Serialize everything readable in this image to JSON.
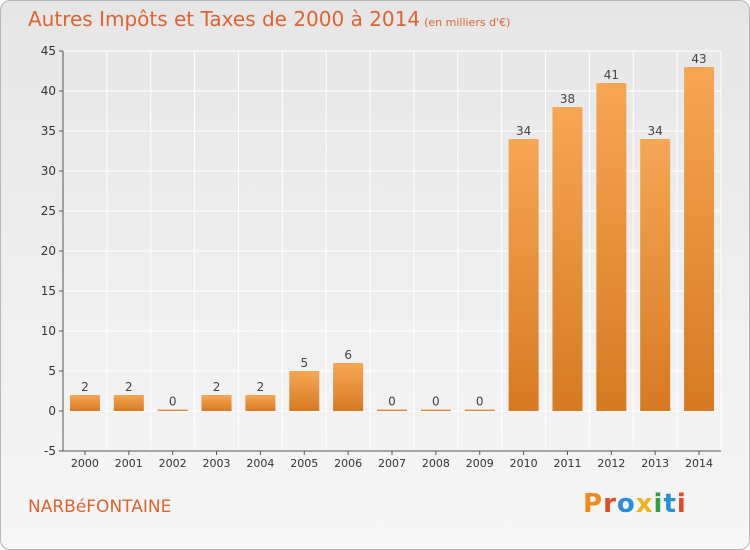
{
  "header": {
    "title": "Autres Impôts et Taxes de 2000 à 2014",
    "unit": "(en milliers d'€)"
  },
  "footer": {
    "commune": "NARBéFONTAINE",
    "logo": "Proxiti"
  },
  "colors": {
    "title": "#e0632e",
    "bar_light": "#f7a654",
    "bar_dark": "#d67a22",
    "axis": "#555555",
    "grid": "#ffffff",
    "logo_letters": [
      "#f08a1e",
      "#e04a2a",
      "#2b8fd8",
      "#f0b21e",
      "#2f9e44",
      "#2b8fd8",
      "#e04a2a"
    ]
  },
  "chart_data": {
    "type": "bar",
    "categories": [
      "2000",
      "2001",
      "2002",
      "2003",
      "2004",
      "2005",
      "2006",
      "2007",
      "2008",
      "2009",
      "2010",
      "2011",
      "2012",
      "2013",
      "2014"
    ],
    "values": [
      2,
      2,
      0,
      2,
      2,
      5,
      6,
      0,
      0,
      0,
      34,
      38,
      41,
      34,
      43
    ],
    "data_labels": [
      "2",
      "2",
      "0",
      "2",
      "2",
      "5",
      "6",
      "0",
      "0",
      "0",
      "34",
      "38",
      "41",
      "34",
      "43"
    ],
    "y_ticks": [
      -5,
      0,
      5,
      10,
      15,
      20,
      25,
      30,
      35,
      40,
      45
    ],
    "y_tick_labels": [
      "-5",
      "0",
      "5",
      "10",
      "15",
      "20",
      "25",
      "30",
      "35",
      "40",
      "45"
    ],
    "ylim": [
      -5,
      45
    ],
    "grid": true
  }
}
